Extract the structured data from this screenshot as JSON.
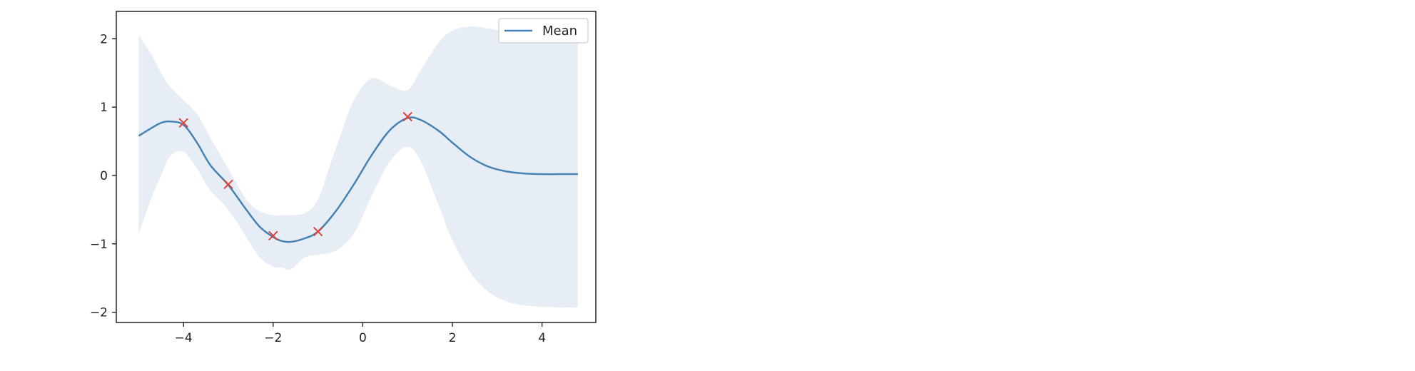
{
  "chart_data": {
    "type": "line",
    "title": "",
    "xlabel": "",
    "ylabel": "",
    "xlim": [
      -5.5,
      5.2
    ],
    "ylim": [
      -2.15,
      2.4
    ],
    "x_ticks": [
      -4,
      -2,
      0,
      2,
      4
    ],
    "y_ticks": [
      -2,
      -1,
      0,
      1,
      2
    ],
    "x_tick_labels": [
      "−4",
      "−2",
      "0",
      "2",
      "4"
    ],
    "y_tick_labels": [
      "−2",
      "−1",
      "0",
      "1",
      "2"
    ],
    "grid": false,
    "legend": {
      "position": "top-right",
      "entries": [
        "Mean"
      ]
    },
    "series": [
      {
        "name": "Mean",
        "kind": "line",
        "color": "#4682b4",
        "x": [
          -5.0,
          -4.7,
          -4.5,
          -4.3,
          -4.0,
          -3.7,
          -3.4,
          -3.0,
          -2.6,
          -2.3,
          -2.0,
          -1.8,
          -1.6,
          -1.3,
          -1.0,
          -0.6,
          -0.2,
          0.2,
          0.6,
          1.0,
          1.3,
          1.7,
          2.0,
          2.4,
          2.8,
          3.2,
          3.6,
          4.0,
          4.4,
          4.8
        ],
        "y": [
          0.58,
          0.7,
          0.77,
          0.79,
          0.74,
          0.48,
          0.15,
          -0.14,
          -0.5,
          -0.75,
          -0.9,
          -0.96,
          -0.97,
          -0.92,
          -0.82,
          -0.52,
          -0.13,
          0.3,
          0.66,
          0.84,
          0.81,
          0.65,
          0.48,
          0.27,
          0.13,
          0.06,
          0.03,
          0.02,
          0.02,
          0.02
        ]
      },
      {
        "name": "",
        "kind": "band",
        "color": "#dde7f2",
        "x": [
          -5.0,
          -4.7,
          -4.5,
          -4.3,
          -4.0,
          -3.7,
          -3.4,
          -3.0,
          -2.6,
          -2.3,
          -2.0,
          -1.8,
          -1.6,
          -1.3,
          -1.0,
          -0.6,
          -0.2,
          0.2,
          0.6,
          1.0,
          1.3,
          1.7,
          2.0,
          2.4,
          2.8,
          3.2,
          3.6,
          4.0,
          4.4,
          4.8
        ],
        "upper": [
          2.05,
          1.75,
          1.5,
          1.3,
          1.1,
          0.9,
          0.55,
          0.1,
          -0.35,
          -0.52,
          -0.58,
          -0.58,
          -0.58,
          -0.55,
          -0.35,
          0.4,
          1.1,
          1.42,
          1.32,
          1.25,
          1.55,
          1.95,
          2.12,
          2.18,
          2.15,
          2.1,
          2.07,
          2.05,
          2.04,
          2.03
        ],
        "lower": [
          -0.85,
          -0.3,
          0.0,
          0.28,
          0.35,
          0.1,
          -0.22,
          -0.5,
          -0.9,
          -1.2,
          -1.33,
          -1.35,
          -1.37,
          -1.2,
          -1.16,
          -1.1,
          -0.85,
          -0.3,
          0.2,
          0.42,
          0.2,
          -0.45,
          -0.95,
          -1.42,
          -1.7,
          -1.84,
          -1.9,
          -1.92,
          -1.93,
          -1.93
        ]
      },
      {
        "name": "",
        "kind": "scatter",
        "marker": "x",
        "color": "#e0403a",
        "x": [
          -4.0,
          -3.0,
          -2.0,
          -1.0,
          1.0
        ],
        "y": [
          0.77,
          -0.13,
          -0.88,
          -0.82,
          0.86
        ]
      }
    ]
  }
}
